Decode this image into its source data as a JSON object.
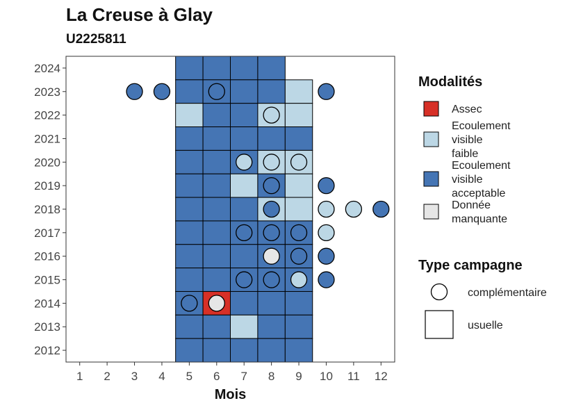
{
  "chart_data": {
    "type": "heatmap",
    "title": "La Creuse à Glay",
    "subtitle": "U2225811",
    "xlabel": "Mois",
    "ylabel": "",
    "x_ticks": [
      1,
      2,
      3,
      4,
      5,
      6,
      7,
      8,
      9,
      10,
      11,
      12
    ],
    "y_ticks": [
      2012,
      2013,
      2014,
      2015,
      2016,
      2017,
      2018,
      2019,
      2020,
      2021,
      2022,
      2023,
      2024
    ],
    "xlim": [
      0.5,
      12.5
    ],
    "ylim": [
      2011.5,
      2024.5
    ],
    "grid": false,
    "legend_placement": "right",
    "colors": {
      "Assec": "#d73027",
      "Ecoulement visible faible": "#bcd7e5",
      "Ecoulement visible acceptable": "#4575b4",
      "Donnée manquante": "#e6e6e6"
    },
    "legend_modalites": {
      "title": "Modalités",
      "entries": [
        {
          "key": "Assec",
          "lines": [
            "Assec"
          ]
        },
        {
          "key": "Ecoulement visible faible",
          "lines": [
            "Ecoulement",
            "visible",
            "faible"
          ]
        },
        {
          "key": "Ecoulement visible acceptable",
          "lines": [
            "Ecoulement",
            "visible",
            "acceptable"
          ]
        },
        {
          "key": "Donnée manquante",
          "lines": [
            "Donnée",
            "manquante"
          ]
        }
      ]
    },
    "legend_campagne": {
      "title": "Type campagne",
      "entries": [
        {
          "shape": "circle",
          "label": "complémentaire"
        },
        {
          "shape": "square",
          "label": "usuelle"
        }
      ]
    },
    "usuelle": [
      {
        "year": 2024,
        "cells": [
          [
            5,
            "A"
          ],
          [
            6,
            "A"
          ],
          [
            7,
            "A"
          ],
          [
            8,
            "A"
          ]
        ]
      },
      {
        "year": 2023,
        "cells": [
          [
            5,
            "A"
          ],
          [
            6,
            "A"
          ],
          [
            7,
            "A"
          ],
          [
            8,
            "A"
          ],
          [
            9,
            "F"
          ]
        ]
      },
      {
        "year": 2022,
        "cells": [
          [
            5,
            "F"
          ],
          [
            6,
            "A"
          ],
          [
            7,
            "A"
          ],
          [
            8,
            "F"
          ],
          [
            9,
            "F"
          ]
        ]
      },
      {
        "year": 2021,
        "cells": [
          [
            5,
            "A"
          ],
          [
            6,
            "A"
          ],
          [
            7,
            "A"
          ],
          [
            8,
            "A"
          ],
          [
            9,
            "A"
          ]
        ]
      },
      {
        "year": 2020,
        "cells": [
          [
            5,
            "A"
          ],
          [
            6,
            "A"
          ],
          [
            7,
            "A"
          ],
          [
            8,
            "F"
          ],
          [
            9,
            "F"
          ]
        ]
      },
      {
        "year": 2019,
        "cells": [
          [
            5,
            "A"
          ],
          [
            6,
            "A"
          ],
          [
            7,
            "F"
          ],
          [
            8,
            "A"
          ],
          [
            9,
            "F"
          ]
        ]
      },
      {
        "year": 2018,
        "cells": [
          [
            5,
            "A"
          ],
          [
            6,
            "A"
          ],
          [
            7,
            "A"
          ],
          [
            8,
            "F"
          ],
          [
            9,
            "F"
          ]
        ]
      },
      {
        "year": 2017,
        "cells": [
          [
            5,
            "A"
          ],
          [
            6,
            "A"
          ],
          [
            7,
            "A"
          ],
          [
            8,
            "A"
          ],
          [
            9,
            "A"
          ]
        ]
      },
      {
        "year": 2016,
        "cells": [
          [
            5,
            "A"
          ],
          [
            6,
            "A"
          ],
          [
            7,
            "A"
          ],
          [
            8,
            "A"
          ],
          [
            9,
            "A"
          ]
        ]
      },
      {
        "year": 2015,
        "cells": [
          [
            5,
            "A"
          ],
          [
            6,
            "A"
          ],
          [
            7,
            "A"
          ],
          [
            8,
            "A"
          ],
          [
            9,
            "A"
          ]
        ]
      },
      {
        "year": 2014,
        "cells": [
          [
            5,
            "A"
          ],
          [
            6,
            "S"
          ],
          [
            7,
            "A"
          ],
          [
            8,
            "A"
          ],
          [
            9,
            "A"
          ]
        ]
      },
      {
        "year": 2013,
        "cells": [
          [
            5,
            "A"
          ],
          [
            6,
            "A"
          ],
          [
            7,
            "F"
          ],
          [
            8,
            "A"
          ],
          [
            9,
            "A"
          ]
        ]
      },
      {
        "year": 2012,
        "cells": [
          [
            5,
            "A"
          ],
          [
            6,
            "A"
          ],
          [
            7,
            "A"
          ],
          [
            8,
            "A"
          ],
          [
            9,
            "A"
          ]
        ]
      }
    ],
    "complementaire": [
      {
        "year": 2023,
        "points": [
          [
            3,
            "A"
          ],
          [
            4,
            "A"
          ],
          [
            6,
            "A"
          ],
          [
            10,
            "A"
          ]
        ]
      },
      {
        "year": 2022,
        "points": [
          [
            8,
            "F"
          ]
        ]
      },
      {
        "year": 2020,
        "points": [
          [
            7,
            "F"
          ],
          [
            8,
            "F"
          ],
          [
            9,
            "F"
          ]
        ]
      },
      {
        "year": 2019,
        "points": [
          [
            8,
            "A"
          ],
          [
            10,
            "A"
          ]
        ]
      },
      {
        "year": 2018,
        "points": [
          [
            8,
            "A"
          ],
          [
            10,
            "F"
          ],
          [
            11,
            "F"
          ],
          [
            12,
            "A"
          ]
        ]
      },
      {
        "year": 2017,
        "points": [
          [
            7,
            "A"
          ],
          [
            8,
            "A"
          ],
          [
            9,
            "A"
          ],
          [
            10,
            "F"
          ]
        ]
      },
      {
        "year": 2016,
        "points": [
          [
            8,
            "M"
          ],
          [
            9,
            "A"
          ],
          [
            10,
            "A"
          ]
        ]
      },
      {
        "year": 2015,
        "points": [
          [
            7,
            "A"
          ],
          [
            8,
            "A"
          ],
          [
            9,
            "F"
          ],
          [
            10,
            "A"
          ]
        ]
      },
      {
        "year": 2014,
        "points": [
          [
            5,
            "A"
          ],
          [
            6,
            "M"
          ]
        ]
      }
    ],
    "code_map": {
      "S": "Assec",
      "F": "Ecoulement visible faible",
      "A": "Ecoulement visible acceptable",
      "M": "Donnée manquante"
    }
  }
}
